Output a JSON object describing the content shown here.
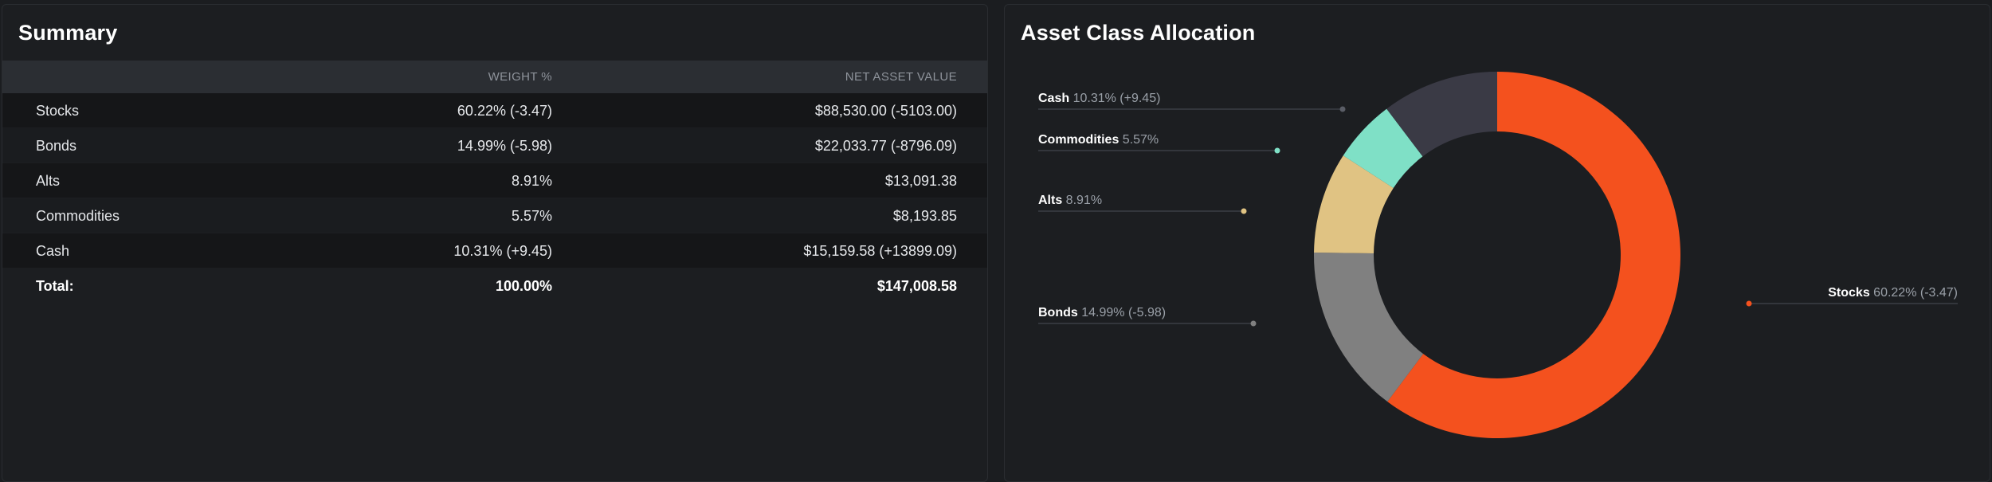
{
  "summary": {
    "title": "Summary",
    "columns": {
      "name": "",
      "weight": "WEIGHT %",
      "nav": "NET ASSET VALUE"
    },
    "rows": [
      {
        "name": "Stocks",
        "weight": "60.22% (-3.47)",
        "nav": "$88,530.00 (-5103.00)"
      },
      {
        "name": "Bonds",
        "weight": "14.99% (-5.98)",
        "nav": "$22,033.77 (-8796.09)"
      },
      {
        "name": "Alts",
        "weight": "8.91%",
        "nav": "$13,091.38"
      },
      {
        "name": "Commodities",
        "weight": "5.57%",
        "nav": "$8,193.85"
      },
      {
        "name": "Cash",
        "weight": "10.31% (+9.45)",
        "nav": "$15,159.58 (+13899.09)"
      }
    ],
    "total": {
      "name": "Total:",
      "weight": "100.00%",
      "nav": "$147,008.58"
    }
  },
  "allocation": {
    "title": "Asset Class Allocation"
  },
  "chart_data": {
    "type": "pie",
    "style": "donut",
    "title": "Asset Class Allocation",
    "slices": [
      {
        "name": "Stocks",
        "value": 60.22,
        "label_value": "60.22% (-3.47)",
        "color": "#f4511e"
      },
      {
        "name": "Bonds",
        "value": 14.99,
        "label_value": "14.99% (-5.98)",
        "color": "#808080"
      },
      {
        "name": "Alts",
        "value": 8.91,
        "label_value": "8.91%",
        "color": "#e0c383"
      },
      {
        "name": "Commodities",
        "value": 5.57,
        "label_value": "5.57%",
        "color": "#7fe0c6"
      },
      {
        "name": "Cash",
        "value": 10.31,
        "label_value": "10.31% (+9.45)",
        "color": "#3a3a45"
      }
    ]
  }
}
